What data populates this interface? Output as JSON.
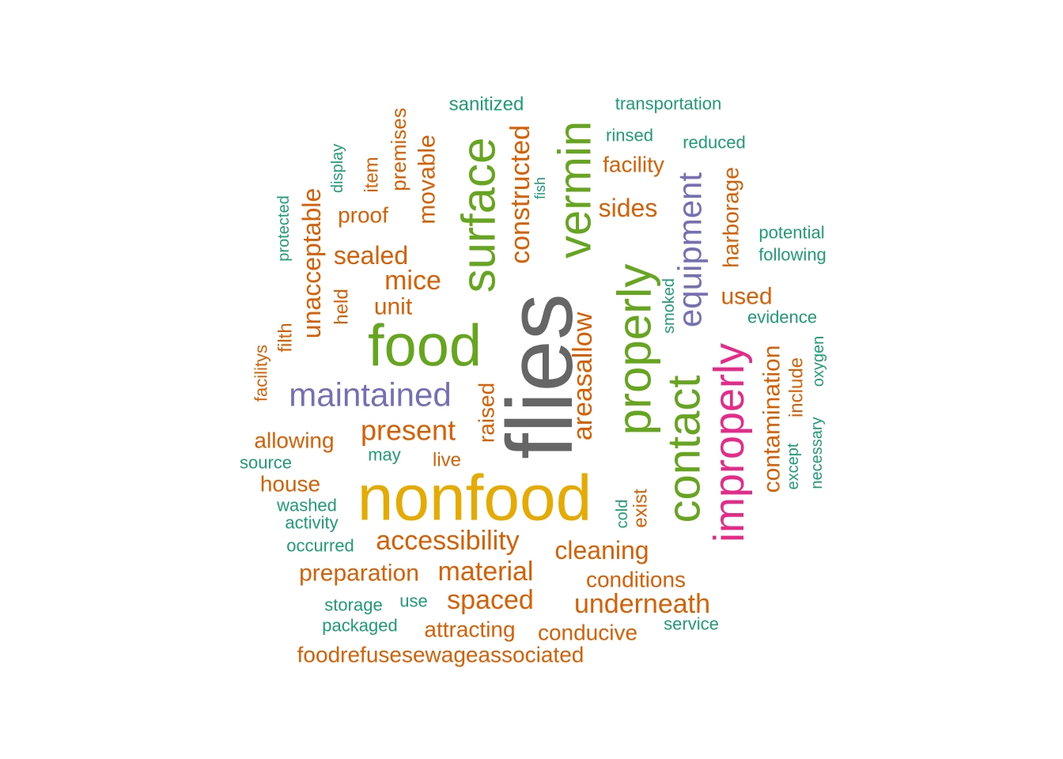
{
  "chart_data": {
    "type": "wordcloud",
    "colors": {
      "teal": "#1b9e77",
      "orange": "#d95f02",
      "purple": "#7570b3",
      "magenta": "#e7298a",
      "green": "#66a61e",
      "gold": "#e6ab02",
      "gray": "#666666"
    },
    "words": [
      {
        "text": "flies",
        "color": "gray",
        "rotate": true
      },
      {
        "text": "nonfood",
        "color": "gold",
        "rotate": false
      },
      {
        "text": "food",
        "color": "green",
        "rotate": false
      },
      {
        "text": "surface",
        "color": "green",
        "rotate": true
      },
      {
        "text": "vermin",
        "color": "green",
        "rotate": true
      },
      {
        "text": "properly",
        "color": "green",
        "rotate": true
      },
      {
        "text": "contact",
        "color": "green",
        "rotate": true
      },
      {
        "text": "improperly",
        "color": "magenta",
        "rotate": true
      },
      {
        "text": "maintained",
        "color": "purple",
        "rotate": false
      },
      {
        "text": "equipment",
        "color": "purple",
        "rotate": true
      },
      {
        "text": "accessibility",
        "color": "orange",
        "rotate": false
      },
      {
        "text": "present",
        "color": "orange",
        "rotate": false
      },
      {
        "text": "areasallow",
        "color": "orange",
        "rotate": true
      },
      {
        "text": "material",
        "color": "orange",
        "rotate": false
      },
      {
        "text": "underneath",
        "color": "orange",
        "rotate": false
      },
      {
        "text": "constructed",
        "color": "orange",
        "rotate": true
      },
      {
        "text": "contamination",
        "color": "orange",
        "rotate": true
      },
      {
        "text": "unacceptable",
        "color": "orange",
        "rotate": true
      },
      {
        "text": "cleaning",
        "color": "orange",
        "rotate": false
      },
      {
        "text": "spaced",
        "color": "orange",
        "rotate": false
      },
      {
        "text": "mice",
        "color": "orange",
        "rotate": false
      },
      {
        "text": "sealed",
        "color": "orange",
        "rotate": false
      },
      {
        "text": "movable",
        "color": "orange",
        "rotate": true
      },
      {
        "text": "premises",
        "color": "orange",
        "rotate": true
      },
      {
        "text": "preparation",
        "color": "orange",
        "rotate": false
      },
      {
        "text": "foodrefusesewageassociated",
        "color": "orange",
        "rotate": false
      },
      {
        "text": "attracting",
        "color": "orange",
        "rotate": false
      },
      {
        "text": "conducive",
        "color": "orange",
        "rotate": false
      },
      {
        "text": "conditions",
        "color": "orange",
        "rotate": false
      },
      {
        "text": "sides",
        "color": "orange",
        "rotate": false
      },
      {
        "text": "facility",
        "color": "orange",
        "rotate": false
      },
      {
        "text": "used",
        "color": "orange",
        "rotate": false
      },
      {
        "text": "harborage",
        "color": "orange",
        "rotate": true
      },
      {
        "text": "raised",
        "color": "orange",
        "rotate": true
      },
      {
        "text": "include",
        "color": "orange",
        "rotate": true
      },
      {
        "text": "allowing",
        "color": "orange",
        "rotate": false
      },
      {
        "text": "house",
        "color": "orange",
        "rotate": false
      },
      {
        "text": "unit",
        "color": "orange",
        "rotate": false
      },
      {
        "text": "proof",
        "color": "orange",
        "rotate": false
      },
      {
        "text": "item",
        "color": "orange",
        "rotate": true
      },
      {
        "text": "filth",
        "color": "orange",
        "rotate": true
      },
      {
        "text": "held",
        "color": "orange",
        "rotate": true
      },
      {
        "text": "facilitys",
        "color": "orange",
        "rotate": true
      },
      {
        "text": "live",
        "color": "orange",
        "rotate": false
      },
      {
        "text": "exist",
        "color": "orange",
        "rotate": true
      },
      {
        "text": "sanitized",
        "color": "teal",
        "rotate": false
      },
      {
        "text": "transportation",
        "color": "teal",
        "rotate": false
      },
      {
        "text": "rinsed",
        "color": "teal",
        "rotate": false
      },
      {
        "text": "reduced",
        "color": "teal",
        "rotate": false
      },
      {
        "text": "potential",
        "color": "teal",
        "rotate": false
      },
      {
        "text": "following",
        "color": "teal",
        "rotate": false
      },
      {
        "text": "evidence",
        "color": "teal",
        "rotate": false
      },
      {
        "text": "oxygen",
        "color": "teal",
        "rotate": true
      },
      {
        "text": "necessary",
        "color": "teal",
        "rotate": true
      },
      {
        "text": "except",
        "color": "teal",
        "rotate": true
      },
      {
        "text": "smoked",
        "color": "teal",
        "rotate": true
      },
      {
        "text": "cold",
        "color": "teal",
        "rotate": true
      },
      {
        "text": "fish",
        "color": "teal",
        "rotate": true
      },
      {
        "text": "display",
        "color": "teal",
        "rotate": true
      },
      {
        "text": "protected",
        "color": "teal",
        "rotate": true
      },
      {
        "text": "source",
        "color": "teal",
        "rotate": false
      },
      {
        "text": "may",
        "color": "teal",
        "rotate": false
      },
      {
        "text": "washed",
        "color": "teal",
        "rotate": false
      },
      {
        "text": "activity",
        "color": "teal",
        "rotate": false
      },
      {
        "text": "occurred",
        "color": "teal",
        "rotate": false
      },
      {
        "text": "storage",
        "color": "teal",
        "rotate": false
      },
      {
        "text": "use",
        "color": "teal",
        "rotate": false
      },
      {
        "text": "packaged",
        "color": "teal",
        "rotate": false
      },
      {
        "text": "service",
        "color": "teal",
        "rotate": false
      }
    ]
  }
}
